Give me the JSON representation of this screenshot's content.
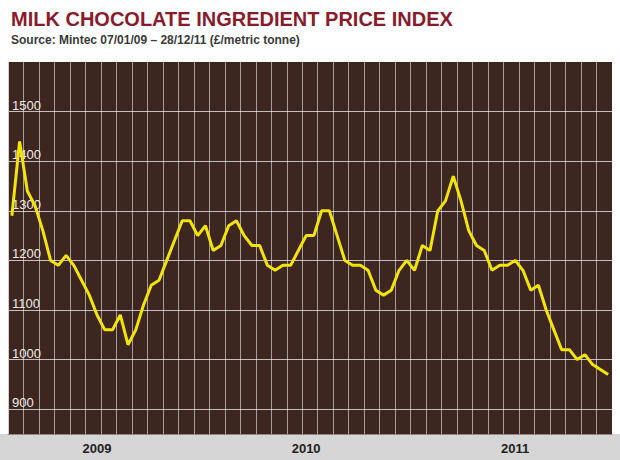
{
  "chart_data": {
    "type": "line",
    "title": "MILK CHOCOLATE INGREDIENT PRICE INDEX",
    "subtitle": "Source: Mintec 07/01/09 – 28/12/11 (£/metric tonne)",
    "categories": [
      null,
      null,
      null,
      null,
      null,
      null,
      null,
      null,
      null,
      null,
      null,
      "2009",
      null,
      null,
      null,
      null,
      null,
      null,
      null,
      null,
      null,
      null,
      null,
      null,
      null,
      null,
      null,
      null,
      null,
      null,
      null,
      null,
      null,
      null,
      null,
      null,
      null,
      null,
      "2010",
      null,
      null,
      null,
      null,
      null,
      null,
      null,
      null,
      null,
      null,
      null,
      null,
      null,
      null,
      null,
      null,
      null,
      null,
      null,
      null,
      null,
      null,
      null,
      null,
      null,
      null,
      "2011",
      null,
      null,
      null,
      null,
      null,
      null,
      null,
      null,
      null,
      null,
      null,
      null
    ],
    "values": [
      1290,
      1440,
      1340,
      1310,
      1260,
      1200,
      1190,
      1210,
      1190,
      1160,
      1130,
      1090,
      1060,
      1060,
      1090,
      1030,
      1060,
      1110,
      1150,
      1160,
      1200,
      1240,
      1280,
      1280,
      1250,
      1270,
      1220,
      1230,
      1270,
      1280,
      1250,
      1230,
      1230,
      1190,
      1180,
      1190,
      1190,
      1220,
      1250,
      1250,
      1300,
      1300,
      1250,
      1200,
      1190,
      1190,
      1180,
      1140,
      1130,
      1140,
      1180,
      1200,
      1180,
      1230,
      1220,
      1300,
      1320,
      1370,
      1320,
      1260,
      1230,
      1220,
      1180,
      1190,
      1190,
      1200,
      1180,
      1140,
      1150,
      1100,
      1060,
      1020,
      1020,
      1000,
      1010,
      990,
      980,
      970
    ],
    "color": "#f2e600",
    "ylim": [
      850,
      1600
    ],
    "yticks": [
      900,
      1000,
      1100,
      1200,
      1300,
      1400,
      1500
    ],
    "grid": true
  }
}
